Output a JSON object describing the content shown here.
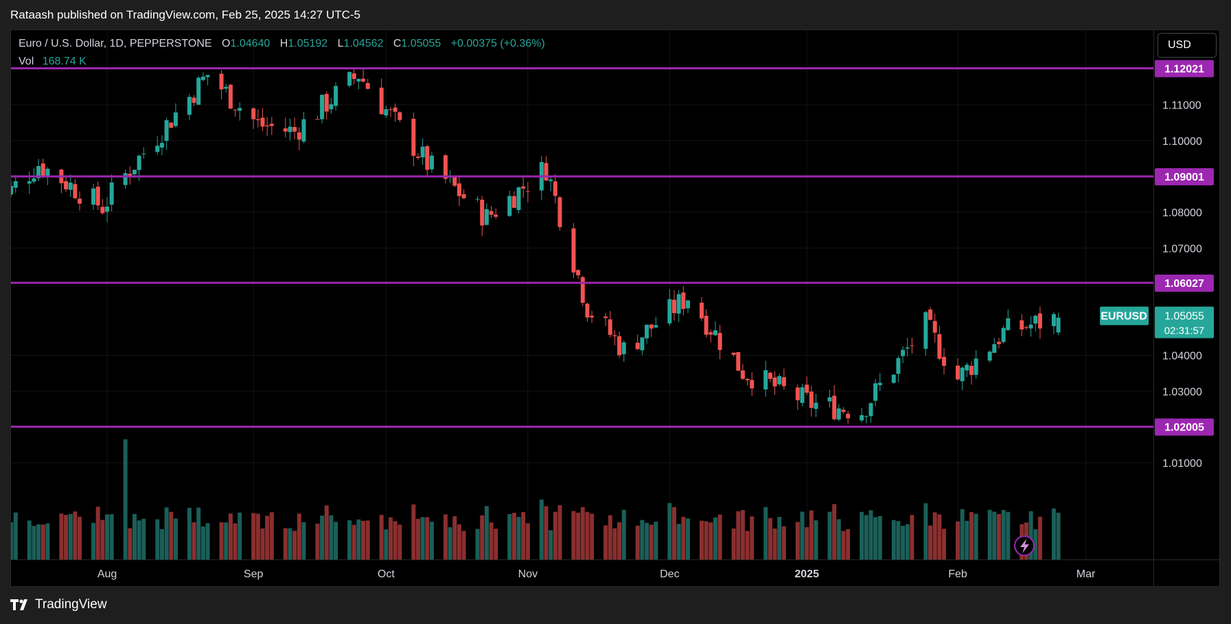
{
  "header": {
    "published": "Rataash published on TradingView.com, Feb 25, 2025 14:27 UTC-5"
  },
  "legend": {
    "symbol": "Euro / U.S. Dollar, 1D, PEPPERSTONE",
    "o_label": "O",
    "o": "1.04640",
    "h_label": "H",
    "h": "1.05192",
    "l_label": "L",
    "l": "1.04562",
    "c_label": "C",
    "c": "1.05055",
    "change": "+0.00375 (+0.36%)",
    "vol_label": "Vol",
    "vol": "168.74 K"
  },
  "currency_button": "USD",
  "footer": {
    "brand": "TradingView"
  },
  "colors": {
    "up": "#26a69a",
    "down": "#ef5350",
    "vol_up": "#1a5f58",
    "vol_down": "#8a2f2f",
    "level": "#9c27b0",
    "background": "#000000",
    "axis_text": "#d1d4dc"
  },
  "chart_data": {
    "type": "candlestick",
    "symbol": "EURUSD",
    "timeframe": "1D",
    "y_axis": {
      "ticks": [
        "1.11000",
        "1.10000",
        "1.08000",
        "1.07000",
        "1.04000",
        "1.03000",
        "1.01000"
      ],
      "range": [
        1.0035,
        1.124
      ]
    },
    "x_axis": {
      "labels": [
        {
          "text": "Aug",
          "date": "2024-08-01"
        },
        {
          "text": "Sep",
          "date": "2024-09-02"
        },
        {
          "text": "Oct",
          "date": "2024-10-01"
        },
        {
          "text": "Nov",
          "date": "2024-11-01"
        },
        {
          "text": "Dec",
          "date": "2024-12-02"
        },
        {
          "text": "2025",
          "date": "2025-01-01"
        },
        {
          "text": "Feb",
          "date": "2025-02-03"
        },
        {
          "text": "Mar",
          "date": "2025-03-03"
        }
      ]
    },
    "levels": [
      "1.12021",
      "1.09001",
      "1.06027",
      "1.02005"
    ],
    "last_price": {
      "symbol": "EURUSD",
      "price": "1.05055",
      "countdown": "02:31:57"
    },
    "last_candle": {
      "date": "2025-02-25",
      "open": 1.0464,
      "high": 1.05192,
      "low": 1.04562,
      "close": 1.05055,
      "volume": "168.74 K"
    },
    "close_series": [
      {
        "date": "2024-07-08",
        "close": 1.0825
      },
      {
        "date": "2024-07-17",
        "close": 1.0935
      },
      {
        "date": "2024-07-31",
        "close": 1.0815
      },
      {
        "date": "2024-08-05",
        "close": 1.0905
      },
      {
        "date": "2024-08-23",
        "close": 1.1185
      },
      {
        "date": "2024-09-03",
        "close": 1.1045
      },
      {
        "date": "2024-09-11",
        "close": 1.1025
      },
      {
        "date": "2024-09-25",
        "close": 1.1185
      },
      {
        "date": "2024-10-10",
        "close": 1.0935
      },
      {
        "date": "2024-10-23",
        "close": 1.0785
      },
      {
        "date": "2024-11-05",
        "close": 1.0925
      },
      {
        "date": "2024-11-14",
        "close": 1.0535
      },
      {
        "date": "2024-11-22",
        "close": 1.0415
      },
      {
        "date": "2024-12-06",
        "close": 1.0565
      },
      {
        "date": "2024-12-18",
        "close": 1.0355
      },
      {
        "date": "2025-01-02",
        "close": 1.0265
      },
      {
        "date": "2025-01-13",
        "close": 1.0245
      },
      {
        "date": "2025-01-27",
        "close": 1.0485
      },
      {
        "date": "2025-02-03",
        "close": 1.0335
      },
      {
        "date": "2025-02-13",
        "close": 1.0465
      },
      {
        "date": "2025-02-25",
        "close": 1.05055
      }
    ],
    "volume_peak": {
      "date": "2024-08-05"
    },
    "legend": "none",
    "grid": true
  }
}
